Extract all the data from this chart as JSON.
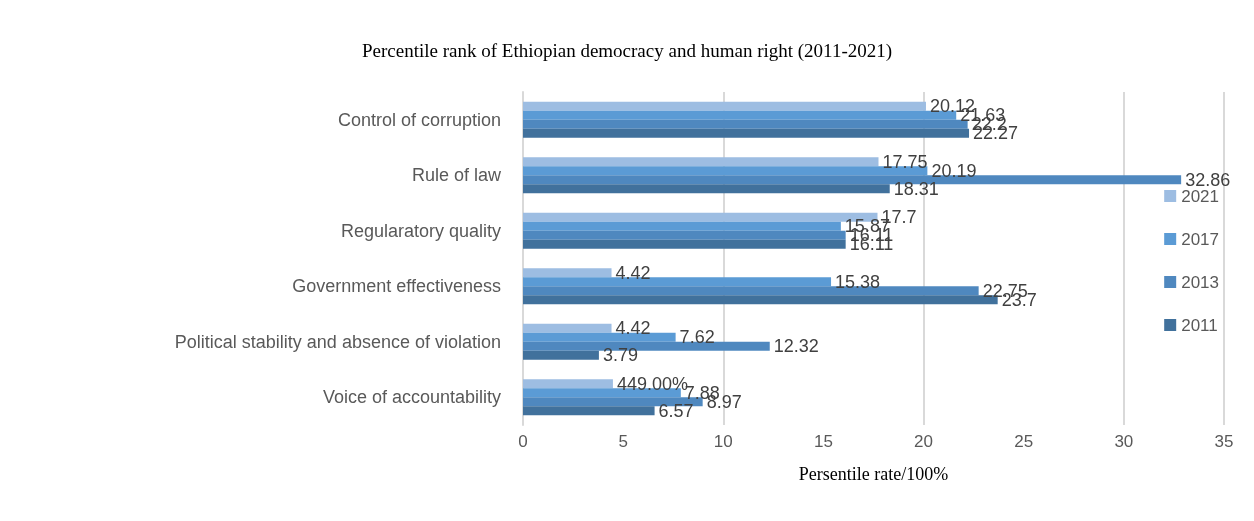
{
  "chart_data": {
    "type": "bar",
    "orientation": "horizontal",
    "title": "Percentile rank of Ethiopian democracy and human right (2011-2021)",
    "xlabel": "Persentile rate/100%",
    "categories": [
      "Control of corruption",
      "Rule of law",
      "Regularatory quality",
      "Government effectiveness",
      "Political stability and absence of violation",
      "Voice of accountability"
    ],
    "series": [
      {
        "name": "2021",
        "color": "#9dbde2",
        "values": [
          20.12,
          17.75,
          17.7,
          4.42,
          4.42,
          4.49
        ],
        "value_labels": [
          "20.12",
          "17.75",
          "17.7",
          "4.42",
          "4.42",
          "449.00%"
        ]
      },
      {
        "name": "2017",
        "color": "#5b9bd5",
        "values": [
          21.63,
          20.19,
          15.87,
          15.38,
          7.62,
          7.88
        ]
      },
      {
        "name": "2013",
        "color": "#4f88bf",
        "values": [
          22.2,
          32.86,
          16.11,
          22.75,
          12.32,
          8.97
        ]
      },
      {
        "name": "2011",
        "color": "#41719c",
        "values": [
          22.27,
          18.31,
          16.11,
          23.7,
          3.79,
          6.57
        ]
      }
    ],
    "xlim": [
      0,
      35
    ],
    "xticks": [
      0,
      5,
      10,
      15,
      20,
      25,
      30,
      35
    ],
    "grid": "x",
    "legend": "right",
    "data_labels": true
  }
}
